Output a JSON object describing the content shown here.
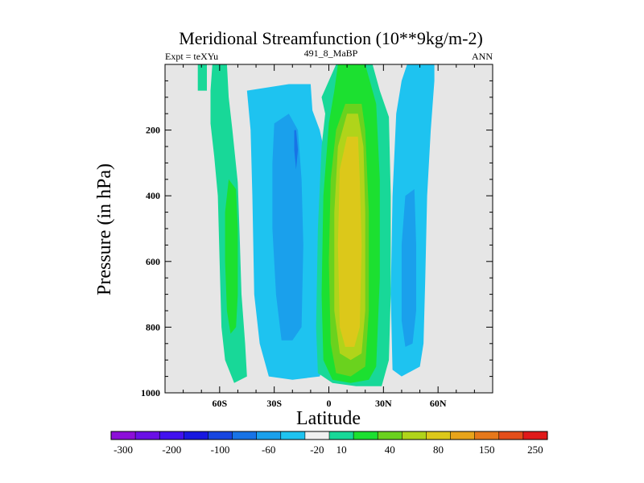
{
  "chart_data": {
    "type": "heatmap",
    "title": "Meridional Streamfunction (10**9kg/m-2)",
    "left_label": "Expt = teXYu",
    "center_label": "491_8_MaBP",
    "right_label": "ANN",
    "xlabel": "Latitude",
    "ylabel": "Pressure (in hPa)",
    "xlim": [
      -90,
      90
    ],
    "ylim": [
      1000,
      0
    ],
    "x_ticks": [
      {
        "value": -60,
        "label": "60S"
      },
      {
        "value": -30,
        "label": "30S"
      },
      {
        "value": 0,
        "label": "0"
      },
      {
        "value": 30,
        "label": "30N"
      },
      {
        "value": 60,
        "label": "60N"
      }
    ],
    "y_ticks": [
      {
        "value": 200,
        "label": "200"
      },
      {
        "value": 400,
        "label": "400"
      },
      {
        "value": 600,
        "label": "600"
      },
      {
        "value": 800,
        "label": "800"
      },
      {
        "value": 1000,
        "label": "1000"
      }
    ],
    "background_color": "#e6e6e6",
    "colorbar": {
      "colors": [
        "#8c0fd8",
        "#6a10e6",
        "#4212ee",
        "#1818e0",
        "#1745e0",
        "#1873e6",
        "#1aa0ec",
        "#1ec3f0",
        "#f0f0f0",
        "#18d898",
        "#1ce030",
        "#6ad21e",
        "#b0d41a",
        "#dcc81a",
        "#e8a41a",
        "#e6781a",
        "#e44e1a",
        "#e01a1a"
      ],
      "labels": [
        "-300",
        "-200",
        "-100",
        "-60",
        "-20",
        "10",
        "40",
        "80",
        "150",
        "250"
      ]
    },
    "contour_fields": [
      {
        "level": "10",
        "color": "#18d898",
        "polygon": [
          [
            -72,
            0
          ],
          [
            -67,
            0
          ],
          [
            -67,
            8
          ],
          [
            -72,
            8
          ]
        ]
      },
      {
        "level": "10",
        "color": "#18d898",
        "polygon": [
          [
            -64,
            0
          ],
          [
            -56,
            0
          ],
          [
            -55,
            10
          ],
          [
            -53,
            20
          ],
          [
            -50,
            36
          ],
          [
            -49,
            52
          ],
          [
            -48,
            70
          ],
          [
            -46,
            85
          ],
          [
            -45,
            95
          ],
          [
            -52,
            97
          ],
          [
            -57,
            90
          ],
          [
            -59,
            80
          ],
          [
            -60,
            60
          ],
          [
            -61,
            40
          ],
          [
            -63,
            28
          ],
          [
            -65,
            18
          ],
          [
            -65,
            8
          ]
        ]
      },
      {
        "level": "40",
        "color": "#1ce030",
        "polygon": [
          [
            -55,
            35
          ],
          [
            -51,
            38
          ],
          [
            -50,
            50
          ],
          [
            -50,
            70
          ],
          [
            -51,
            80
          ],
          [
            -54,
            82
          ],
          [
            -56,
            75
          ],
          [
            -57,
            60
          ],
          [
            -57,
            45
          ]
        ]
      },
      {
        "level": "-20",
        "color": "#1ec3f0",
        "polygon": [
          [
            -45,
            8
          ],
          [
            -22,
            6
          ],
          [
            -10,
            6
          ],
          [
            -9,
            14
          ],
          [
            -5,
            20
          ],
          [
            -1,
            30
          ],
          [
            0,
            55
          ],
          [
            -1,
            88
          ],
          [
            -5,
            95
          ],
          [
            -20,
            96
          ],
          [
            -33,
            95
          ],
          [
            -38,
            85
          ],
          [
            -41,
            70
          ],
          [
            -42,
            40
          ],
          [
            -43,
            20
          ]
        ]
      },
      {
        "level": "-60",
        "color": "#1aa0ec",
        "polygon": [
          [
            -30,
            18
          ],
          [
            -22,
            15
          ],
          [
            -17,
            20
          ],
          [
            -15,
            35
          ],
          [
            -14,
            55
          ],
          [
            -15,
            80
          ],
          [
            -20,
            84
          ],
          [
            -26,
            84
          ],
          [
            -29,
            70
          ],
          [
            -31,
            50
          ],
          [
            -31,
            30
          ]
        ]
      },
      {
        "level": "-100",
        "color": "#1873e6",
        "polygon": [
          [
            -19,
            20
          ],
          [
            -18,
            20
          ],
          [
            -17,
            26
          ],
          [
            -18,
            32
          ],
          [
            -19,
            26
          ]
        ]
      },
      {
        "level": "10",
        "color": "#18d898",
        "polygon": [
          [
            4,
            0
          ],
          [
            24,
            0
          ],
          [
            28,
            8
          ],
          [
            33,
            16
          ],
          [
            34,
            40
          ],
          [
            34,
            70
          ],
          [
            33,
            90
          ],
          [
            29,
            98
          ],
          [
            15,
            98
          ],
          [
            2,
            97
          ],
          [
            -6,
            94
          ],
          [
            -7,
            80
          ],
          [
            -6,
            50
          ],
          [
            -4,
            25
          ],
          [
            -2,
            15
          ],
          [
            -4,
            10
          ],
          [
            0,
            5
          ]
        ]
      },
      {
        "level": "40",
        "color": "#1ce030",
        "polygon": [
          [
            5,
            0
          ],
          [
            20,
            0
          ],
          [
            26,
            12
          ],
          [
            28,
            35
          ],
          [
            28,
            65
          ],
          [
            26,
            92
          ],
          [
            22,
            96
          ],
          [
            12,
            97
          ],
          [
            2,
            96
          ],
          [
            -3,
            90
          ],
          [
            -4,
            70
          ],
          [
            -3,
            40
          ],
          [
            0,
            18
          ],
          [
            3,
            8
          ]
        ]
      },
      {
        "level": "80",
        "color": "#6ad21e",
        "polygon": [
          [
            9,
            12
          ],
          [
            18,
            12
          ],
          [
            20,
            20
          ],
          [
            22,
            45
          ],
          [
            22,
            75
          ],
          [
            20,
            92
          ],
          [
            12,
            95
          ],
          [
            4,
            94
          ],
          [
            1,
            85
          ],
          [
            0,
            60
          ],
          [
            1,
            35
          ],
          [
            4,
            20
          ]
        ]
      },
      {
        "level": "150",
        "color": "#b0d41a",
        "polygon": [
          [
            10,
            15
          ],
          [
            16,
            15
          ],
          [
            19,
            25
          ],
          [
            20,
            45
          ],
          [
            20,
            75
          ],
          [
            18,
            88
          ],
          [
            12,
            90
          ],
          [
            6,
            88
          ],
          [
            3,
            75
          ],
          [
            3,
            45
          ],
          [
            5,
            25
          ]
        ]
      },
      {
        "level": "250",
        "color": "#dcc81a",
        "polygon": [
          [
            10,
            22
          ],
          [
            16,
            22
          ],
          [
            17,
            35
          ],
          [
            18,
            55
          ],
          [
            17,
            80
          ],
          [
            14,
            86
          ],
          [
            9,
            86
          ],
          [
            6,
            80
          ],
          [
            5,
            55
          ],
          [
            6,
            32
          ]
        ]
      },
      {
        "level": "-20",
        "color": "#1ec3f0",
        "polygon": [
          [
            43,
            0
          ],
          [
            58,
            0
          ],
          [
            58,
            5
          ],
          [
            56,
            20
          ],
          [
            54,
            40
          ],
          [
            53,
            65
          ],
          [
            52,
            85
          ],
          [
            50,
            92
          ],
          [
            40,
            95
          ],
          [
            35,
            93
          ],
          [
            34,
            70
          ],
          [
            35,
            40
          ],
          [
            37,
            15
          ],
          [
            40,
            5
          ]
        ]
      },
      {
        "level": "-60",
        "color": "#1aa0ec",
        "polygon": [
          [
            42,
            40
          ],
          [
            47,
            38
          ],
          [
            48,
            55
          ],
          [
            48,
            75
          ],
          [
            46,
            85
          ],
          [
            42,
            86
          ],
          [
            40,
            78
          ],
          [
            40,
            55
          ]
        ]
      }
    ]
  }
}
